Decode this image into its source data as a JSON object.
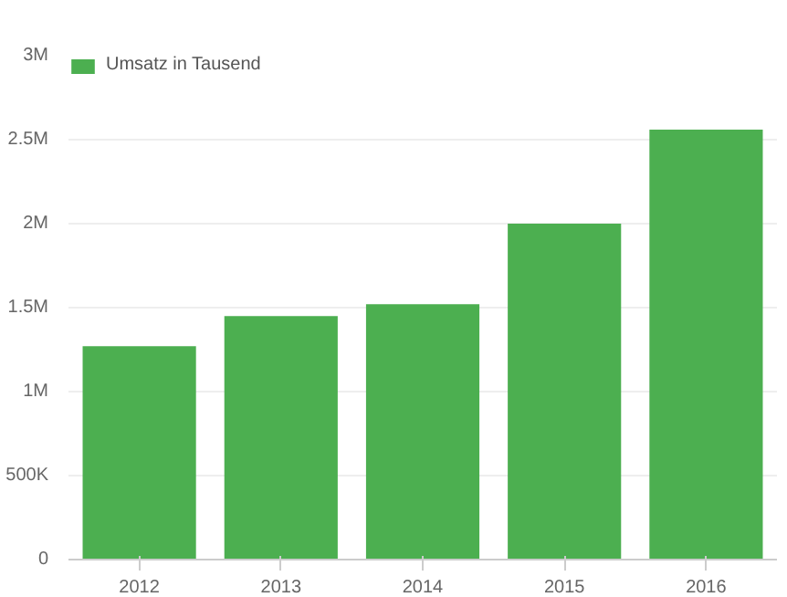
{
  "chart_data": {
    "type": "bar",
    "categories": [
      "2012",
      "2013",
      "2014",
      "2015",
      "2016"
    ],
    "series": [
      {
        "name": "Umsatz in Tausend",
        "color": "#4caf50",
        "values": [
          1270000,
          1450000,
          1520000,
          2000000,
          2560000
        ]
      }
    ],
    "ylim": [
      0,
      3000000
    ],
    "yticks": [
      {
        "value": 0,
        "label": "0"
      },
      {
        "value": 500000,
        "label": "500K"
      },
      {
        "value": 1000000,
        "label": "1M"
      },
      {
        "value": 1500000,
        "label": "1.5M"
      },
      {
        "value": 2000000,
        "label": "2M"
      },
      {
        "value": 2500000,
        "label": "2.5M"
      },
      {
        "value": 3000000,
        "label": "3M"
      }
    ],
    "grid": "y",
    "legend": "top left"
  }
}
